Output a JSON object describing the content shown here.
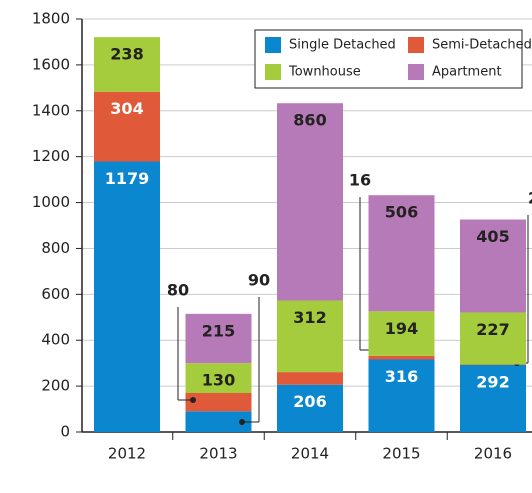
{
  "chart_data": {
    "type": "stacked-bar",
    "categories": [
      "2012",
      "2013",
      "2014",
      "2015",
      "2016"
    ],
    "series": [
      {
        "name": "Single Detached",
        "color": "#0a87cf",
        "values": [
          1179,
          90,
          206,
          316,
          292
        ]
      },
      {
        "name": "Semi-Detached",
        "color": "#e05a3a",
        "values": [
          304,
          80,
          55,
          16,
          2
        ]
      },
      {
        "name": "Townhouse",
        "color": "#a4cc3c",
        "values": [
          238,
          130,
          312,
          194,
          227
        ]
      },
      {
        "name": "Apartment",
        "color": "#b77ab8",
        "values": [
          0,
          215,
          860,
          506,
          405
        ]
      }
    ],
    "ylim": [
      0,
      1800
    ],
    "yticks": [
      0,
      200,
      400,
      600,
      800,
      1000,
      1200,
      1400,
      1600,
      1800
    ],
    "grid": true,
    "legend": "top-right"
  }
}
